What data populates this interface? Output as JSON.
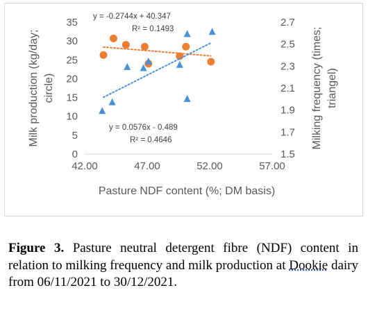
{
  "chart_data": {
    "type": "scatter",
    "xlabel": "Pasture NDF content (%; DM basis)",
    "ylabel_left": "Milk production (kg/day; circle)",
    "ylabel_right": "Milking frequency (times; triangel)",
    "xlim": [
      42,
      57
    ],
    "xticks": [
      "42.00",
      "47.00",
      "52.00",
      "57.00"
    ],
    "ylim_left": [
      0,
      35
    ],
    "yticks_left": [
      "0",
      "5",
      "10",
      "15",
      "20",
      "25",
      "30",
      "35"
    ],
    "ylim_right": [
      1.5,
      2.7
    ],
    "yticks_right": [
      "1.5",
      "1.7",
      "1.9",
      "2.1",
      "2.3",
      "2.5",
      "2.7"
    ],
    "grid": false,
    "series": [
      {
        "marker": "circle",
        "axis": "left",
        "color": "#ED7D31",
        "points": [
          {
            "x": 43.5,
            "y": 26.3
          },
          {
            "x": 44.3,
            "y": 30.7
          },
          {
            "x": 45.3,
            "y": 29.0
          },
          {
            "x": 46.8,
            "y": 28.5
          },
          {
            "x": 47.1,
            "y": 24.0
          },
          {
            "x": 49.6,
            "y": 26.0
          },
          {
            "x": 50.1,
            "y": 28.5
          },
          {
            "x": 52.1,
            "y": 24.5
          }
        ],
        "trendline": {
          "slope": -0.2744,
          "intercept": 40.347,
          "x_range": [
            43.5,
            52.1
          ]
        },
        "equation": "y = -0.2744x + 40.347",
        "r2": "R² = 0.1493"
      },
      {
        "marker": "triangle",
        "axis": "right",
        "color": "#4A90D9",
        "points": [
          {
            "x": 43.4,
            "y": 1.89
          },
          {
            "x": 44.2,
            "y": 1.97
          },
          {
            "x": 45.4,
            "y": 2.29
          },
          {
            "x": 46.7,
            "y": 2.28
          },
          {
            "x": 47.1,
            "y": 2.34
          },
          {
            "x": 49.6,
            "y": 2.31
          },
          {
            "x": 50.2,
            "y": 2.59
          },
          {
            "x": 50.2,
            "y": 2.0
          },
          {
            "x": 52.2,
            "y": 2.61
          }
        ],
        "trendline": {
          "slope": 0.0576,
          "intercept": -0.489,
          "x_range": [
            43.5,
            52.1
          ]
        },
        "equation": "y = 0.0576x - 0.489",
        "r2": "R² = 0.4646"
      }
    ]
  },
  "caption": {
    "label": "Figure 3.",
    "text_before": " Pasture neutral detergent fibre (NDF) content in relation to milking frequency and milk production at ",
    "place": "Dookie",
    "text_after": " dairy from 06/11/2021 to 30/12/2021."
  }
}
